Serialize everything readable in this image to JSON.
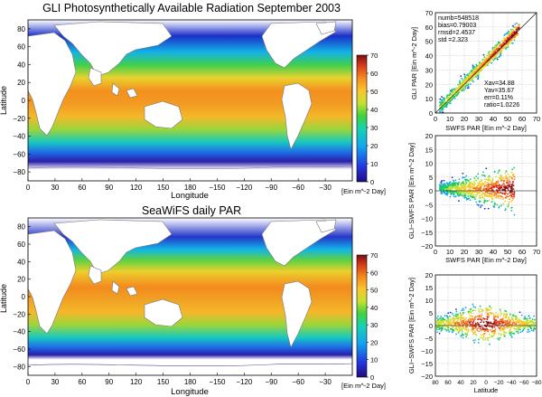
{
  "figure": {
    "title_top": "GLI Photosynthetically Available Radiation September 2003",
    "title_bottom": "SeaWiFS daily PAR"
  },
  "colors": {
    "ocean_ramp": [
      "#2a0a8c",
      "#2b4cf0",
      "#10b6ee",
      "#1cd49a",
      "#5ad43a",
      "#c9e032",
      "#f7c52e",
      "#f58a1d",
      "#e5541a",
      "#c0281a",
      "#7a0d0d"
    ],
    "land": "#ffffff",
    "no_data": "#ffffff",
    "ice": "#1a0f8c"
  },
  "chart_data": [
    {
      "type": "heatmap",
      "panel": "gli_map",
      "title": "GLI Photosynthetically Available Radiation September 2003",
      "xlabel": "Longitude",
      "ylabel": "Latitude",
      "x_ticks": [
        "0",
        "30",
        "60",
        "90",
        "120",
        "150",
        "180",
        "−150",
        "−120",
        "−90",
        "−60",
        "−30"
      ],
      "y_ticks": [
        "−80",
        "−60",
        "−40",
        "−20",
        "0",
        "20",
        "40",
        "60",
        "80"
      ],
      "ylim": [
        -90,
        90
      ],
      "colorbar": {
        "ticks": [
          "0",
          "10",
          "20",
          "30",
          "40",
          "50",
          "60",
          "70"
        ],
        "range": [
          0,
          70
        ],
        "unit": "[Ein m^-2 Day]"
      }
    },
    {
      "type": "heatmap",
      "panel": "seawifs_map",
      "title": "SeaWiFS daily PAR",
      "xlabel": "Longitude",
      "ylabel": "Latitude",
      "x_ticks": [
        "0",
        "30",
        "60",
        "90",
        "120",
        "150",
        "180",
        "−150",
        "−120",
        "−90",
        "−60",
        "−30"
      ],
      "y_ticks": [
        "−80",
        "−60",
        "−40",
        "−20",
        "0",
        "20",
        "40",
        "60",
        "80"
      ],
      "ylim": [
        -90,
        90
      ],
      "colorbar": {
        "ticks": [
          "0",
          "10",
          "20",
          "30",
          "40",
          "50",
          "60",
          "70"
        ],
        "range": [
          0,
          70
        ],
        "unit": "[Ein m^-2 Day]"
      }
    },
    {
      "type": "scatter",
      "panel": "gli_vs_swfs",
      "xlabel": "SWFS PAR [Ein m^-2 Day]",
      "ylabel": "GLI PAR [Ein m^-2 Day]",
      "xlim": [
        0,
        70
      ],
      "ylim": [
        0,
        70
      ],
      "x_ticks": [
        "0",
        "10",
        "20",
        "30",
        "40",
        "50",
        "60",
        "70"
      ],
      "y_ticks": [
        "0",
        "10",
        "20",
        "30",
        "40",
        "50",
        "60",
        "70"
      ],
      "stats": [
        "numb=548518",
        "bias=0.79003",
        "rmsd=2.4537",
        "std =2.323"
      ],
      "stats2": [
        "Xav=34.88",
        "Yav=35.67",
        "err=0.11%",
        "ratio=1.0226"
      ],
      "one_to_one_line": true
    },
    {
      "type": "scatter",
      "panel": "diff_vs_swfs",
      "xlabel": "SWFS PAR [Ein m^-2 Day]",
      "ylabel": "GLI−SWFS PAR [Ein m^-2 Day]",
      "xlim": [
        0,
        70
      ],
      "ylim": [
        -20,
        20
      ],
      "x_ticks": [
        "0",
        "10",
        "20",
        "30",
        "40",
        "50",
        "60",
        "70"
      ],
      "y_ticks": [
        "−20",
        "−15",
        "−10",
        "−5",
        "0",
        "5",
        "10",
        "15",
        "20"
      ],
      "zero_line": true
    },
    {
      "type": "scatter",
      "panel": "diff_vs_lat",
      "xlabel": "Latitude",
      "ylabel": "GLI−SWFS PAR [Ein m^-2 Day]",
      "xlim": [
        80,
        -80
      ],
      "ylim": [
        -20,
        20
      ],
      "x_ticks": [
        "80",
        "60",
        "40",
        "20",
        "0",
        "−20",
        "−40",
        "−60",
        "−80"
      ],
      "y_ticks": [
        "−20",
        "−15",
        "−10",
        "−5",
        "0",
        "5",
        "10",
        "15",
        "20"
      ],
      "zero_line": true
    }
  ]
}
